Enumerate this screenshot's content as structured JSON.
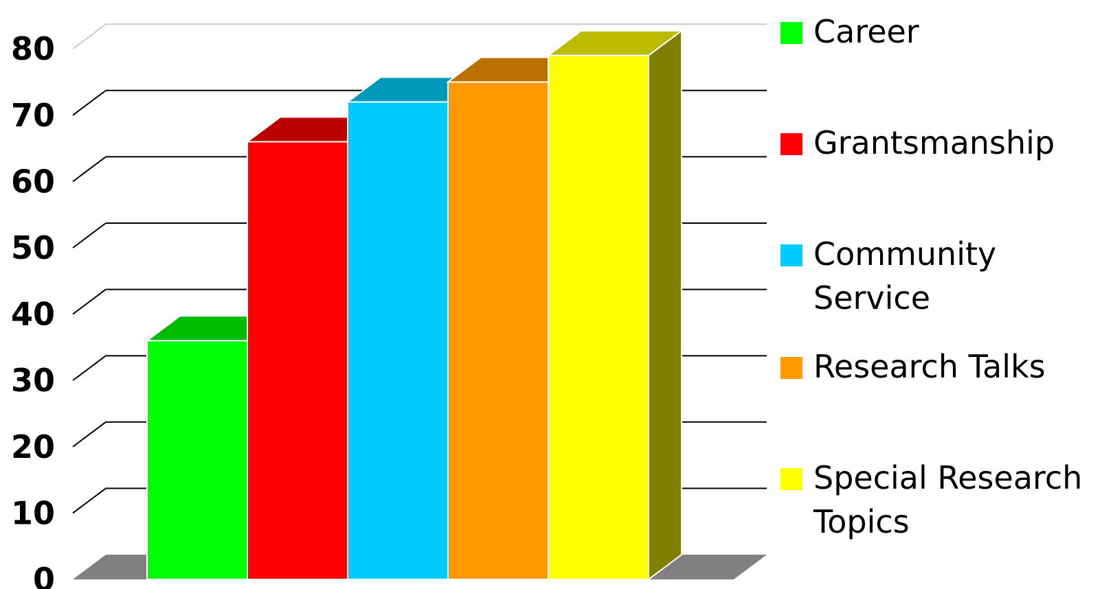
{
  "chart_data": {
    "type": "bar",
    "title": "",
    "xlabel": "",
    "ylabel": "",
    "ylim": [
      0,
      80
    ],
    "y_ticks": [
      "0",
      "10",
      "20",
      "30",
      "40",
      "50",
      "60",
      "70",
      "80"
    ],
    "y_tick_values": [
      0,
      10,
      20,
      30,
      40,
      50,
      60,
      70,
      80
    ],
    "grid": true,
    "three_d": true,
    "legend_position": "right",
    "series": [
      {
        "name": "Career",
        "value": 36,
        "color": "#00ff00",
        "top_color": "#00bb00"
      },
      {
        "name": "Grantsmanship",
        "value": 66,
        "color": "#ff0000",
        "top_color": "#bb0000"
      },
      {
        "name": "Community Service",
        "value": 72,
        "color": "#00ccff",
        "top_color": "#0099bb"
      },
      {
        "name": "Research Talks",
        "value": 75,
        "color": "#ff9900",
        "top_color": "#bb7000"
      },
      {
        "name": "Special Research Topics",
        "value": 79,
        "color": "#ffff00",
        "top_color": "#bbbb00",
        "side_color": "#808000"
      }
    ],
    "floor_color": "#808080"
  }
}
